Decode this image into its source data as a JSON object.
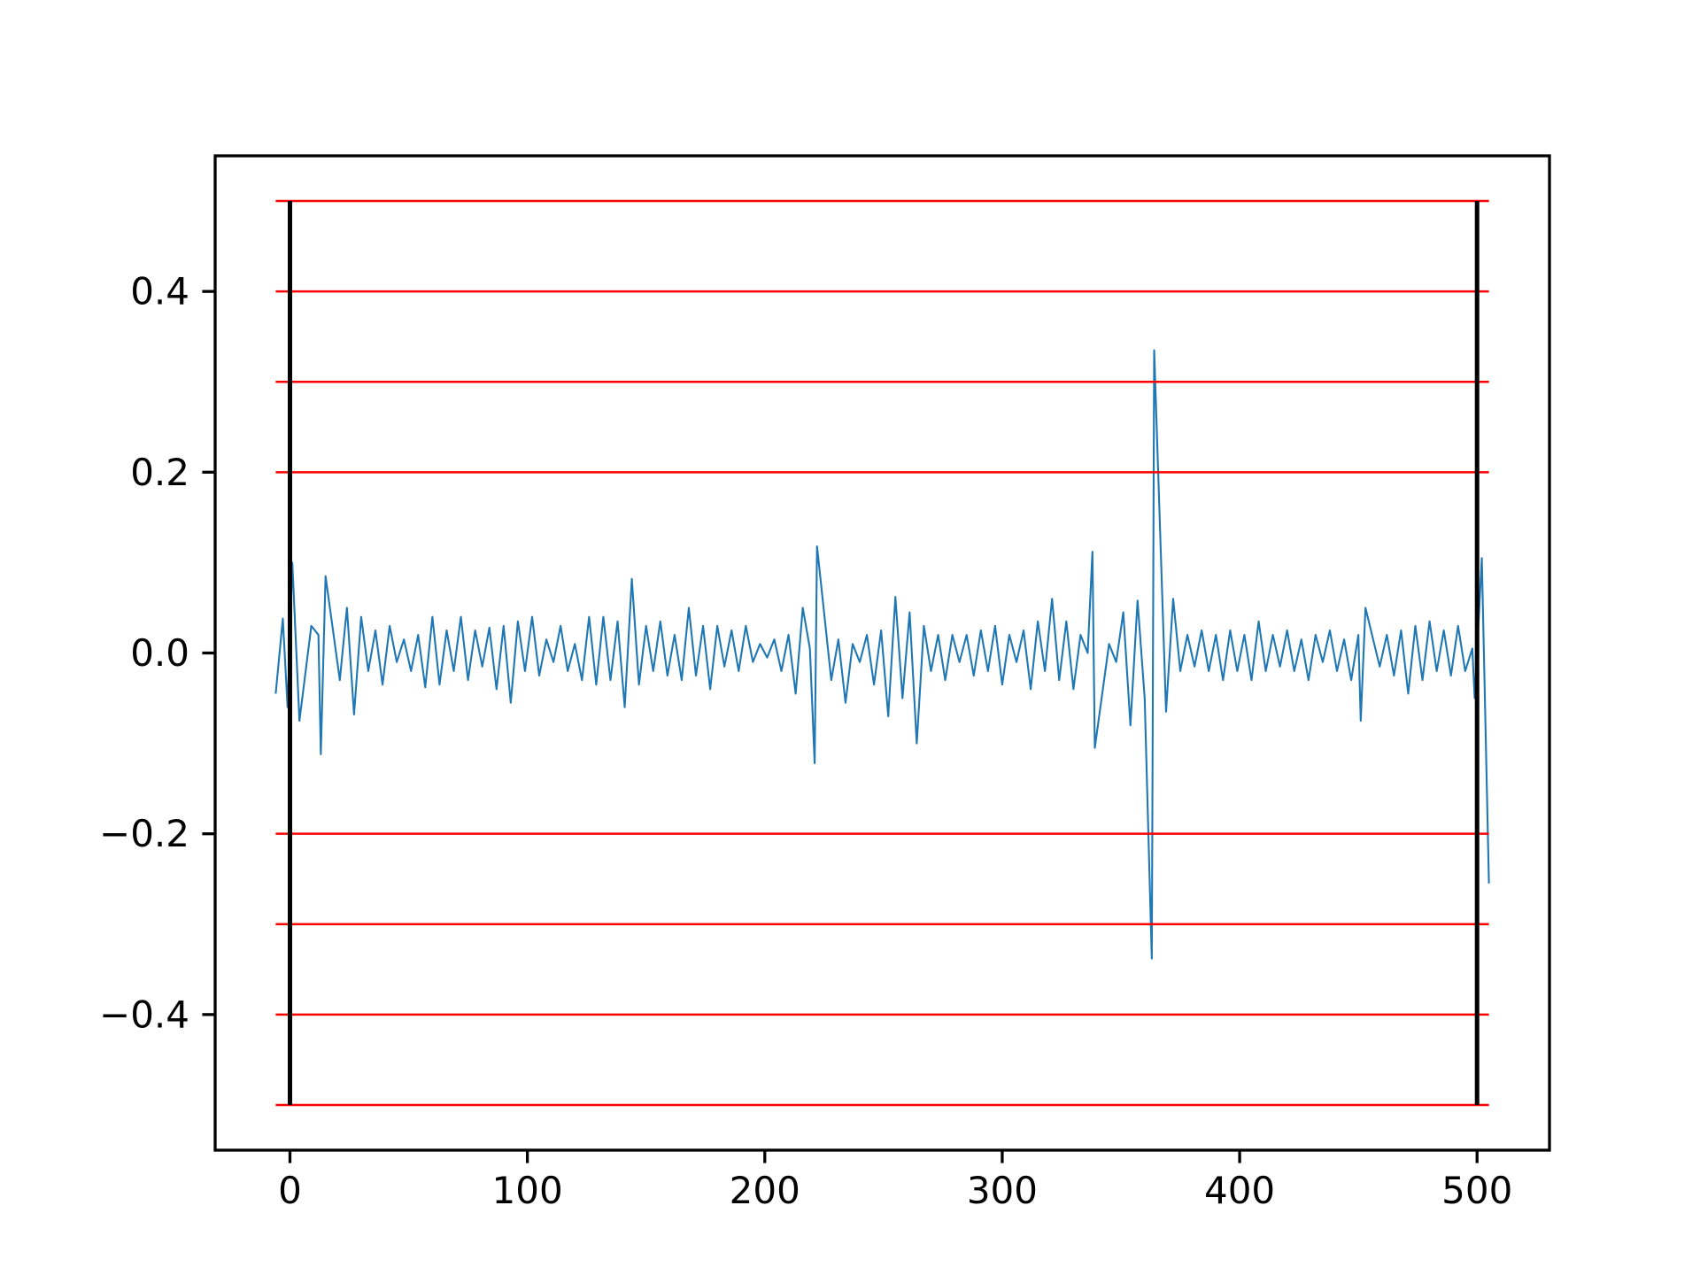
{
  "chart_data": {
    "type": "line",
    "x": [
      -6,
      -3,
      -1,
      1,
      4,
      9,
      12,
      13,
      15,
      21,
      24,
      27,
      30,
      33,
      36,
      39,
      42,
      45,
      48,
      51,
      54,
      57,
      60,
      63,
      66,
      69,
      72,
      75,
      78,
      81,
      84,
      87,
      90,
      93,
      96,
      99,
      102,
      105,
      108,
      111,
      114,
      117,
      120,
      123,
      126,
      129,
      132,
      135,
      138,
      141,
      144,
      147,
      150,
      153,
      156,
      159,
      162,
      165,
      168,
      171,
      174,
      177,
      180,
      183,
      186,
      189,
      192,
      195,
      198,
      201,
      204,
      207,
      210,
      213,
      216,
      219,
      221,
      222,
      228,
      231,
      234,
      237,
      240,
      243,
      246,
      249,
      252,
      255,
      258,
      261,
      264,
      267,
      270,
      273,
      276,
      279,
      282,
      285,
      288,
      291,
      294,
      297,
      300,
      303,
      306,
      309,
      312,
      315,
      318,
      321,
      324,
      327,
      330,
      333,
      336,
      338,
      339,
      345,
      348,
      351,
      354,
      357,
      360,
      363,
      364,
      369,
      372,
      375,
      378,
      381,
      384,
      387,
      390,
      393,
      396,
      399,
      402,
      405,
      408,
      411,
      414,
      417,
      420,
      423,
      426,
      429,
      432,
      435,
      438,
      441,
      444,
      447,
      450,
      451,
      453,
      459,
      462,
      465,
      468,
      471,
      474,
      477,
      480,
      483,
      486,
      489,
      492,
      495,
      498,
      499,
      502,
      505
    ],
    "series": [
      {
        "color": "#1f77b4",
        "values": [
          -0.045,
          0.038,
          -0.06,
          0.1,
          -0.075,
          0.03,
          0.02,
          -0.112,
          0.085,
          -0.03,
          0.05,
          -0.068,
          0.04,
          -0.02,
          0.025,
          -0.035,
          0.03,
          -0.01,
          0.015,
          -0.02,
          0.02,
          -0.038,
          0.04,
          -0.035,
          0.025,
          -0.02,
          0.04,
          -0.03,
          0.025,
          -0.015,
          0.028,
          -0.04,
          0.03,
          -0.055,
          0.035,
          -0.02,
          0.04,
          -0.025,
          0.015,
          -0.01,
          0.03,
          -0.02,
          0.01,
          -0.03,
          0.04,
          -0.035,
          0.04,
          -0.03,
          0.035,
          -0.06,
          0.082,
          -0.035,
          0.03,
          -0.02,
          0.035,
          -0.025,
          0.02,
          -0.03,
          0.05,
          -0.025,
          0.03,
          -0.04,
          0.03,
          -0.015,
          0.025,
          -0.02,
          0.03,
          -0.01,
          0.01,
          -0.005,
          0.015,
          -0.02,
          0.02,
          -0.045,
          0.05,
          0.005,
          -0.122,
          0.118,
          -0.03,
          0.015,
          -0.055,
          0.01,
          -0.01,
          0.02,
          -0.035,
          0.025,
          -0.07,
          0.062,
          -0.05,
          0.045,
          -0.1,
          0.03,
          -0.02,
          0.02,
          -0.03,
          0.02,
          -0.01,
          0.02,
          -0.025,
          0.025,
          -0.02,
          0.03,
          -0.035,
          0.02,
          -0.01,
          0.025,
          -0.04,
          0.035,
          -0.02,
          0.06,
          -0.03,
          0.035,
          -0.04,
          0.02,
          0.0,
          0.112,
          -0.105,
          0.01,
          -0.01,
          0.045,
          -0.08,
          0.058,
          -0.05,
          -0.338,
          0.335,
          -0.065,
          0.06,
          -0.02,
          0.02,
          -0.015,
          0.025,
          -0.02,
          0.02,
          -0.03,
          0.025,
          -0.02,
          0.02,
          -0.03,
          0.035,
          -0.02,
          0.02,
          -0.015,
          0.025,
          -0.02,
          0.015,
          -0.03,
          0.02,
          -0.01,
          0.025,
          -0.02,
          0.015,
          -0.03,
          0.02,
          -0.075,
          0.05,
          -0.015,
          0.02,
          -0.025,
          0.025,
          -0.045,
          0.03,
          -0.03,
          0.035,
          -0.02,
          0.025,
          -0.025,
          0.03,
          -0.02,
          0.005,
          -0.05,
          0.105,
          -0.255
        ]
      }
    ],
    "hlines": {
      "values": [
        -0.5,
        -0.4,
        -0.3,
        -0.2,
        0.2,
        0.3,
        0.4,
        0.5
      ],
      "color": "#ff0000",
      "span": [
        -6,
        505
      ]
    },
    "vlines": {
      "values": [
        0,
        500
      ],
      "color": "#000000",
      "span": [
        -0.5,
        0.5
      ]
    },
    "xlim": [
      -31.5,
      530.5
    ],
    "ylim": [
      -0.55,
      0.55
    ],
    "xticks": [
      0,
      100,
      200,
      300,
      400,
      500
    ],
    "yticks": [
      {
        "value": -0.4,
        "label": "−0.4"
      },
      {
        "value": -0.2,
        "label": "−0.2"
      },
      {
        "value": 0,
        "label": "0.0"
      },
      0.2,
      0.4
    ],
    "grid": false
  }
}
